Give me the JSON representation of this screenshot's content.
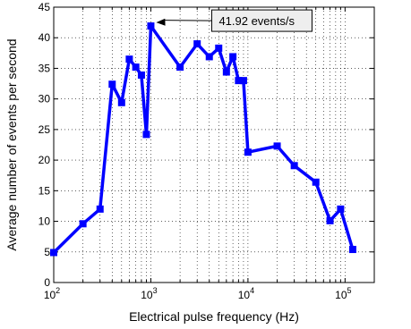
{
  "chart_data": {
    "type": "line",
    "xscale": "log",
    "xlim": [
      100,
      200000
    ],
    "ylim": [
      0,
      45
    ],
    "grid": true,
    "xlabel": "Electrical pulse frequency (Hz)",
    "ylabel": "Average number of events per second",
    "x_ticks": [
      {
        "value": 100,
        "base": "10",
        "exp": "2"
      },
      {
        "value": 1000,
        "base": "10",
        "exp": "3"
      },
      {
        "value": 10000,
        "base": "10",
        "exp": "4"
      },
      {
        "value": 100000,
        "base": "10",
        "exp": "5"
      }
    ],
    "y_ticks": [
      0,
      5,
      10,
      15,
      20,
      25,
      30,
      35,
      40,
      45
    ],
    "series": [
      {
        "color": "#0000ff",
        "marker": "square",
        "x": [
          100,
          200,
          300,
          400,
          500,
          600,
          700,
          800,
          900,
          1000,
          2000,
          3000,
          4000,
          5000,
          6000,
          7000,
          8000,
          9000,
          10000,
          20000,
          30000,
          50000,
          70000,
          90000,
          120000
        ],
        "y": [
          4.9,
          9.6,
          12.0,
          32.4,
          29.4,
          36.5,
          35.2,
          33.9,
          24.2,
          41.92,
          35.2,
          39.0,
          36.9,
          38.3,
          34.4,
          36.9,
          33.0,
          33.0,
          21.3,
          22.3,
          19.1,
          16.4,
          10.1,
          12.0,
          5.4
        ]
      }
    ],
    "annotation": {
      "text": "41.92 events/s",
      "x": 1000,
      "y": 41.92
    }
  }
}
